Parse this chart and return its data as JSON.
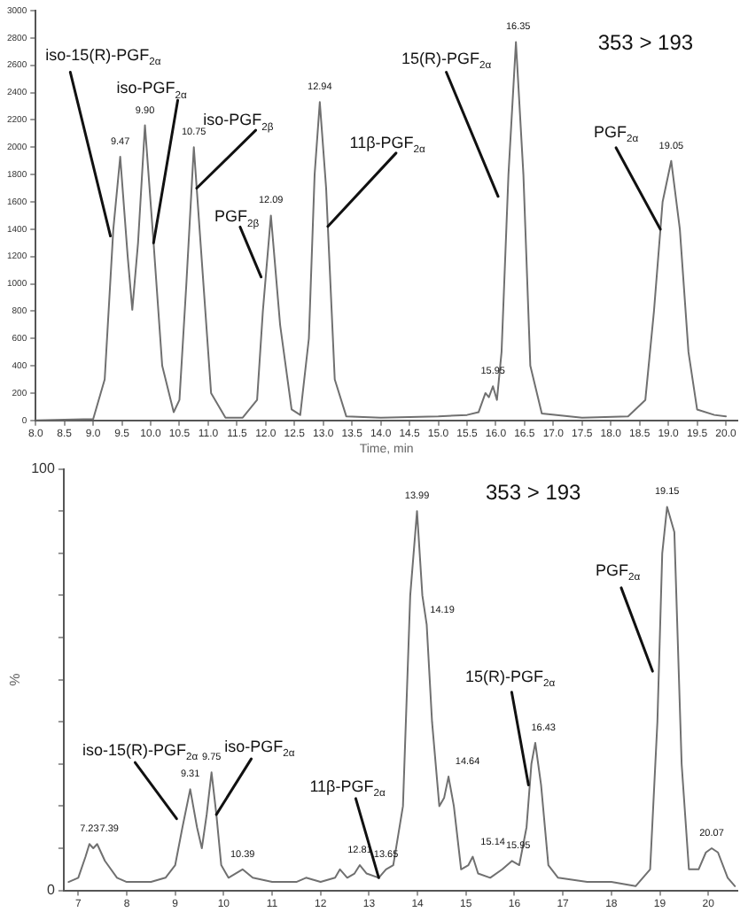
{
  "chart_data": [
    {
      "type": "line",
      "color": "#707070",
      "marker": "none",
      "xlabel": "Time, min",
      "x": [
        8.0,
        9.0,
        9.2,
        9.35,
        9.47,
        9.6,
        9.68,
        9.78,
        9.9,
        10.05,
        10.2,
        10.4,
        10.5,
        10.62,
        10.75,
        10.9,
        11.05,
        11.3,
        11.6,
        11.85,
        11.95,
        12.09,
        12.25,
        12.45,
        12.6,
        12.75,
        12.85,
        12.94,
        13.05,
        13.2,
        13.4,
        14.0,
        15.0,
        15.5,
        15.7,
        15.82,
        15.88,
        15.95,
        16.02,
        16.1,
        16.22,
        16.35,
        16.48,
        16.6,
        16.8,
        17.5,
        18.3,
        18.6,
        18.75,
        18.9,
        19.05,
        19.2,
        19.35,
        19.5,
        19.8,
        20.0
      ],
      "values": [
        0,
        10,
        300,
        1400,
        1930,
        1200,
        810,
        1300,
        2160,
        1300,
        400,
        60,
        150,
        1000,
        2000,
        1100,
        200,
        20,
        20,
        150,
        800,
        1500,
        700,
        80,
        40,
        600,
        1800,
        2330,
        1700,
        300,
        30,
        20,
        30,
        40,
        60,
        200,
        170,
        250,
        150,
        500,
        1800,
        2770,
        1800,
        400,
        50,
        20,
        30,
        150,
        800,
        1600,
        1900,
        1400,
        500,
        80,
        40,
        30
      ],
      "xlim": [
        8.0,
        20.2
      ],
      "xticks": [
        {
          "value": 8,
          "label": "8.0"
        },
        8.5,
        {
          "value": 9,
          "label": "9.0"
        },
        9.5,
        {
          "value": 10,
          "label": "10.0"
        },
        10.5,
        {
          "value": 11,
          "label": "11.0"
        },
        11.5,
        {
          "value": 12,
          "label": "12.0"
        },
        12.5,
        {
          "value": 13,
          "label": "13.0"
        },
        13.5,
        {
          "value": 14,
          "label": "14.0"
        },
        14.5,
        {
          "value": 15,
          "label": "15.0"
        },
        15.5,
        {
          "value": 16,
          "label": "16.0"
        },
        16.5,
        {
          "value": 17,
          "label": "17.0"
        },
        17.5,
        {
          "value": 18,
          "label": "18.0"
        },
        18.5,
        {
          "value": 19,
          "label": "19.0"
        },
        19.5,
        {
          "value": 20,
          "label": "20.0"
        }
      ],
      "ylim": [
        0,
        3000
      ],
      "yticks": [
        0,
        200,
        400,
        600,
        800,
        1000,
        1200,
        1400,
        1600,
        1800,
        2000,
        2200,
        2400,
        2600,
        2800,
        3000
      ],
      "annotations": [
        "353 > 193",
        {
          "text": "iso-15(R)-PGF$_{2α}$",
          "x": 9.3,
          "y": 1350
        },
        {
          "text": "iso-PGF$_{2α}$",
          "x": 10.05,
          "y": 1300
        },
        {
          "text": "iso-PGF$_{2β}$",
          "x": 10.8,
          "y": 1700
        },
        {
          "text": "PGF$_{2β}$",
          "x": 11.92,
          "y": 1050
        },
        {
          "text": "11β-PGF$_{2α}$",
          "x": 13.08,
          "y": 1420
        },
        {
          "text": "15(R)-PGF$_{2α}$",
          "x": 16.04,
          "y": 1640
        },
        {
          "text": "PGF$_{2α}$",
          "x": 18.86,
          "y": 1400
        },
        {
          "text": "9.47",
          "x": 9.47,
          "y": 1930
        },
        {
          "text": "9.90",
          "x": 9.9,
          "y": 2160
        },
        {
          "text": "10.75",
          "x": 10.75,
          "y": 2000
        },
        {
          "text": "12.09",
          "x": 12.09,
          "y": 1500
        },
        {
          "text": "12.94",
          "x": 12.94,
          "y": 2330
        },
        {
          "text": "15.95",
          "x": 15.95,
          "y": 250
        },
        {
          "text": "16.35",
          "x": 16.35,
          "y": 2770
        },
        {
          "text": "19.05",
          "x": 19.05,
          "y": 1900
        }
      ]
    },
    {
      "type": "line",
      "color": "#707070",
      "marker": "none",
      "ylabel": "%",
      "x": [
        6.8,
        7.0,
        7.15,
        7.23,
        7.31,
        7.39,
        7.55,
        7.8,
        8.0,
        8.5,
        8.8,
        9.0,
        9.15,
        9.31,
        9.45,
        9.55,
        9.65,
        9.75,
        9.85,
        9.95,
        10.1,
        10.39,
        10.6,
        11.0,
        11.5,
        11.7,
        12.0,
        12.3,
        12.4,
        12.55,
        12.7,
        12.81,
        12.95,
        13.2,
        13.35,
        13.5,
        13.7,
        13.85,
        13.99,
        14.1,
        14.19,
        14.3,
        14.45,
        14.55,
        14.64,
        14.75,
        14.9,
        15.05,
        15.14,
        15.25,
        15.5,
        15.75,
        15.95,
        16.1,
        16.25,
        16.35,
        16.43,
        16.55,
        16.7,
        16.9,
        17.5,
        18.0,
        18.5,
        18.8,
        18.95,
        19.05,
        19.15,
        19.3,
        19.45,
        19.6,
        19.8,
        19.95,
        20.07,
        20.2,
        20.4,
        20.55
      ],
      "values": [
        2,
        3,
        8,
        11,
        10,
        11,
        7,
        3,
        2,
        2,
        3,
        6,
        15,
        24,
        15,
        10,
        18,
        28,
        18,
        6,
        3,
        5,
        3,
        2,
        2,
        3,
        2,
        3,
        5,
        3,
        4,
        6,
        4,
        3,
        5,
        6,
        20,
        70,
        90,
        70,
        63,
        40,
        20,
        22,
        27,
        20,
        5,
        6,
        8,
        4,
        3,
        5,
        7,
        6,
        15,
        30,
        35,
        25,
        6,
        3,
        2,
        2,
        1,
        5,
        40,
        80,
        91,
        85,
        30,
        5,
        5,
        9,
        10,
        9,
        3,
        1
      ],
      "xlim": [
        6.7,
        20.6
      ],
      "xticks": [
        7,
        8,
        9,
        10,
        11,
        12,
        13,
        14,
        15,
        16,
        17,
        18,
        19,
        20
      ],
      "ylim": [
        0,
        100
      ],
      "yticks": [
        0,
        {
          "value": 10,
          "label": null
        },
        {
          "value": 20,
          "label": null
        },
        {
          "value": 30,
          "label": null
        },
        {
          "value": 40,
          "label": null
        },
        {
          "value": 50,
          "label": null
        },
        {
          "value": 60,
          "label": null
        },
        {
          "value": 70,
          "label": null
        },
        {
          "value": 80,
          "label": null
        },
        {
          "value": 90,
          "label": null
        },
        100
      ],
      "annotations": [
        "353 > 193",
        {
          "text": "PGF$_{2α}$",
          "x": 18.85,
          "y": 52
        },
        {
          "text": "15(R)-PGF$_{2α}$",
          "x": 16.29,
          "y": 25
        },
        {
          "text": "iso-15(R)-PGF$_{2α}$",
          "x": 9.03,
          "y": 17
        },
        {
          "text": "iso-PGF$_{2α}$",
          "x": 9.85,
          "y": 18
        },
        {
          "text": "11β-PGF$_{2α}$",
          "x": 13.2,
          "y": 3
        },
        {
          "text": "7.23",
          "x": 7.23,
          "y": 11
        },
        {
          "text": "7.39",
          "x": 7.39,
          "y": 11
        },
        {
          "text": "9.31",
          "x": 9.31,
          "y": 24
        },
        {
          "text": "9.75",
          "x": 9.75,
          "y": 28
        },
        {
          "text": "10.39",
          "x": 10.39,
          "y": 5
        },
        {
          "text": "12.81",
          "x": 12.81,
          "y": 6
        },
        {
          "text": "13.65",
          "x": 13.35,
          "y": 5
        },
        {
          "text": "13.99",
          "x": 13.99,
          "y": 90
        },
        {
          "text": "14.19",
          "x": 14.19,
          "y": 63
        },
        {
          "text": "14.64",
          "x": 14.64,
          "y": 27
        },
        {
          "text": "15.14",
          "x": 15.14,
          "y": 8
        },
        {
          "text": "15.95",
          "x": 15.95,
          "y": 7
        },
        {
          "text": "16.43",
          "x": 16.43,
          "y": 35
        },
        {
          "text": "19.15",
          "x": 19.15,
          "y": 91
        },
        {
          "text": "20.07",
          "x": 20.07,
          "y": 10
        }
      ]
    }
  ]
}
